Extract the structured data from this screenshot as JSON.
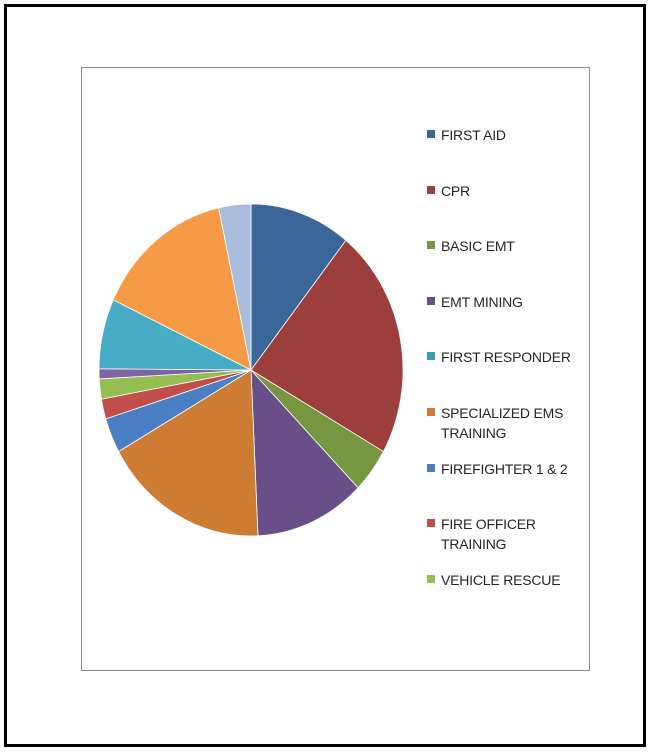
{
  "chart_data": {
    "type": "pie",
    "title": "",
    "legend_position": "right",
    "slices": [
      {
        "label": "FIRST AID",
        "value": 11,
        "color": "#3A6699"
      },
      {
        "label": "CPR",
        "value": 23,
        "color": "#9B3E3C"
      },
      {
        "label": "BASIC EMT",
        "value": 4.5,
        "color": "#76973F"
      },
      {
        "label": "EMT MINING",
        "value": 12,
        "color": "#684F87"
      },
      {
        "label": "FIRST RESPONDER",
        "value": 0,
        "color": "#3A9BB3"
      },
      {
        "label": "SPECIALIZED EMS TRAINING",
        "value": 18,
        "color": "#CE7C34"
      },
      {
        "label": "FIREFIGHTER 1 & 2",
        "value": 3.5,
        "color": "#4A7FC6"
      },
      {
        "label": "FIRE OFFICER TRAINING",
        "value": 2,
        "color": "#C24E4C"
      },
      {
        "label": "VEHICLE RESCUE",
        "value": 2,
        "color": "#94BE52"
      },
      {
        "label": "",
        "value": 1,
        "color": "#7E64A3"
      },
      {
        "label": "",
        "value": 7,
        "color": "#47ACC6"
      },
      {
        "label": "",
        "value": 15,
        "color": "#F79A46"
      },
      {
        "label": "",
        "value": 3.5,
        "color": "#A8BCDC"
      }
    ]
  }
}
